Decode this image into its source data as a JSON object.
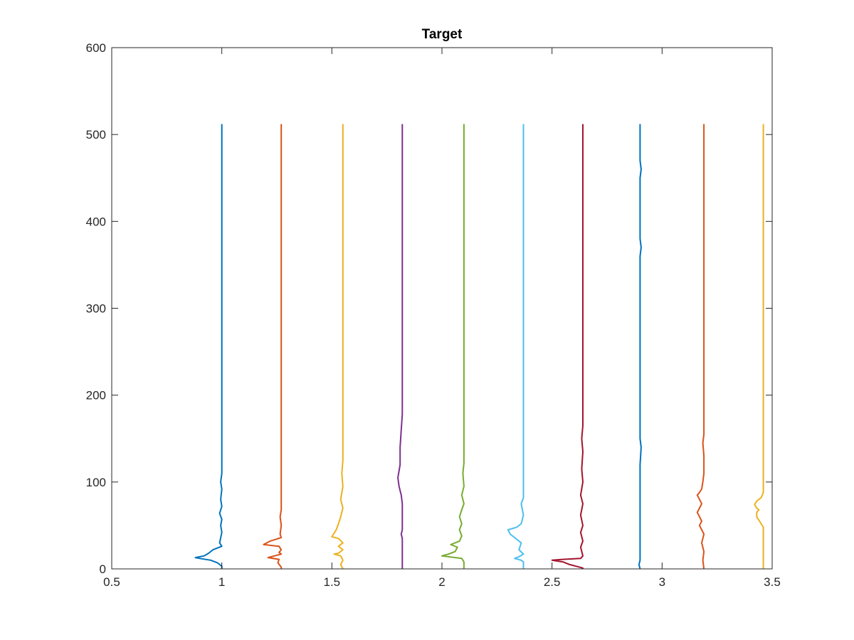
{
  "chart_data": {
    "type": "line",
    "title": "Target",
    "xlabel": "",
    "ylabel": "",
    "xlim": [
      0.5,
      3.5
    ],
    "ylim": [
      0,
      600
    ],
    "x_ticks": [
      "0.5",
      "1",
      "1.5",
      "2",
      "2.5",
      "3",
      "3.5"
    ],
    "y_ticks": [
      "0",
      "100",
      "200",
      "300",
      "400",
      "500",
      "600"
    ],
    "grid": false,
    "legend": "none",
    "series": [
      {
        "color": "#0072BD",
        "points": [
          [
            1.0,
            512
          ],
          [
            1.0,
            110
          ],
          [
            0.995,
            100
          ],
          [
            1.0,
            92
          ],
          [
            0.995,
            80
          ],
          [
            1.0,
            72
          ],
          [
            0.99,
            64
          ],
          [
            1.0,
            57
          ],
          [
            0.995,
            50
          ],
          [
            1.0,
            42
          ],
          [
            0.99,
            30
          ],
          [
            1.0,
            26
          ],
          [
            0.96,
            22
          ],
          [
            0.94,
            18
          ],
          [
            0.92,
            15
          ],
          [
            0.88,
            13
          ],
          [
            0.9,
            12
          ],
          [
            0.95,
            10
          ],
          [
            0.98,
            7
          ],
          [
            1.0,
            3
          ],
          [
            1.0,
            0
          ]
        ]
      },
      {
        "color": "#D95319",
        "points": [
          [
            1.27,
            512
          ],
          [
            1.27,
            68
          ],
          [
            1.265,
            60
          ],
          [
            1.27,
            50
          ],
          [
            1.265,
            40
          ],
          [
            1.27,
            36
          ],
          [
            1.22,
            32
          ],
          [
            1.19,
            28
          ],
          [
            1.26,
            26
          ],
          [
            1.27,
            22
          ],
          [
            1.26,
            19
          ],
          [
            1.27,
            17
          ],
          [
            1.24,
            15
          ],
          [
            1.21,
            13
          ],
          [
            1.26,
            11
          ],
          [
            1.255,
            7
          ],
          [
            1.27,
            2
          ],
          [
            1.27,
            0
          ]
        ]
      },
      {
        "color": "#EDB120",
        "points": [
          [
            1.55,
            512
          ],
          [
            1.55,
            125
          ],
          [
            1.545,
            110
          ],
          [
            1.55,
            95
          ],
          [
            1.54,
            80
          ],
          [
            1.55,
            70
          ],
          [
            1.54,
            60
          ],
          [
            1.53,
            52
          ],
          [
            1.52,
            45
          ],
          [
            1.5,
            37
          ],
          [
            1.53,
            35
          ],
          [
            1.55,
            30
          ],
          [
            1.53,
            26
          ],
          [
            1.55,
            22
          ],
          [
            1.53,
            18
          ],
          [
            1.51,
            17
          ],
          [
            1.54,
            15
          ],
          [
            1.55,
            10
          ],
          [
            1.54,
            5
          ],
          [
            1.55,
            0
          ]
        ]
      },
      {
        "color": "#7E2F8E",
        "points": [
          [
            1.82,
            512
          ],
          [
            1.82,
            178
          ],
          [
            1.815,
            160
          ],
          [
            1.81,
            140
          ],
          [
            1.81,
            120
          ],
          [
            1.8,
            105
          ],
          [
            1.805,
            95
          ],
          [
            1.815,
            85
          ],
          [
            1.82,
            75
          ],
          [
            1.82,
            45
          ],
          [
            1.815,
            40
          ],
          [
            1.82,
            35
          ],
          [
            1.82,
            0
          ]
        ]
      },
      {
        "color": "#77AC30",
        "points": [
          [
            2.1,
            512
          ],
          [
            2.1,
            122
          ],
          [
            2.095,
            110
          ],
          [
            2.1,
            95
          ],
          [
            2.09,
            85
          ],
          [
            2.1,
            75
          ],
          [
            2.09,
            68
          ],
          [
            2.08,
            60
          ],
          [
            2.09,
            52
          ],
          [
            2.08,
            45
          ],
          [
            2.09,
            38
          ],
          [
            2.08,
            32
          ],
          [
            2.04,
            28
          ],
          [
            2.07,
            25
          ],
          [
            2.06,
            20
          ],
          [
            2.03,
            17
          ],
          [
            2.0,
            15
          ],
          [
            2.09,
            12
          ],
          [
            2.1,
            8
          ],
          [
            2.1,
            0
          ]
        ]
      },
      {
        "color": "#4DBEEE",
        "points": [
          [
            2.37,
            512
          ],
          [
            2.37,
            82
          ],
          [
            2.36,
            75
          ],
          [
            2.37,
            62
          ],
          [
            2.36,
            52
          ],
          [
            2.34,
            48
          ],
          [
            2.3,
            45
          ],
          [
            2.31,
            40
          ],
          [
            2.33,
            36
          ],
          [
            2.36,
            30
          ],
          [
            2.35,
            22
          ],
          [
            2.37,
            17
          ],
          [
            2.35,
            14
          ],
          [
            2.33,
            12
          ],
          [
            2.36,
            10
          ],
          [
            2.37,
            8
          ],
          [
            2.37,
            0
          ]
        ]
      },
      {
        "color": "#A2142F",
        "points": [
          [
            2.64,
            512
          ],
          [
            2.64,
            165
          ],
          [
            2.635,
            150
          ],
          [
            2.64,
            135
          ],
          [
            2.635,
            115
          ],
          [
            2.64,
            100
          ],
          [
            2.63,
            85
          ],
          [
            2.64,
            75
          ],
          [
            2.63,
            62
          ],
          [
            2.64,
            50
          ],
          [
            2.63,
            42
          ],
          [
            2.64,
            32
          ],
          [
            2.63,
            25
          ],
          [
            2.64,
            15
          ],
          [
            2.63,
            12
          ],
          [
            2.55,
            11
          ],
          [
            2.5,
            10
          ],
          [
            2.55,
            8
          ],
          [
            2.58,
            5
          ],
          [
            2.61,
            3
          ],
          [
            2.64,
            1
          ],
          [
            2.64,
            0
          ]
        ]
      },
      {
        "color": "#0072BD",
        "points": [
          [
            2.9,
            512
          ],
          [
            2.9,
            470
          ],
          [
            2.905,
            460
          ],
          [
            2.9,
            450
          ],
          [
            2.9,
            380
          ],
          [
            2.905,
            370
          ],
          [
            2.9,
            360
          ],
          [
            2.9,
            150
          ],
          [
            2.905,
            140
          ],
          [
            2.9,
            120
          ],
          [
            2.9,
            10
          ],
          [
            2.895,
            5
          ],
          [
            2.9,
            0
          ]
        ]
      },
      {
        "color": "#D95319",
        "points": [
          [
            3.19,
            512
          ],
          [
            3.19,
            155
          ],
          [
            3.185,
            145
          ],
          [
            3.19,
            130
          ],
          [
            3.19,
            110
          ],
          [
            3.185,
            100
          ],
          [
            3.18,
            92
          ],
          [
            3.17,
            88
          ],
          [
            3.16,
            85
          ],
          [
            3.17,
            80
          ],
          [
            3.18,
            75
          ],
          [
            3.17,
            70
          ],
          [
            3.16,
            65
          ],
          [
            3.17,
            60
          ],
          [
            3.18,
            55
          ],
          [
            3.17,
            50
          ],
          [
            3.18,
            45
          ],
          [
            3.19,
            40
          ],
          [
            3.18,
            30
          ],
          [
            3.19,
            20
          ],
          [
            3.185,
            10
          ],
          [
            3.19,
            0
          ]
        ]
      },
      {
        "color": "#EDB120",
        "points": [
          [
            3.46,
            512
          ],
          [
            3.46,
            88
          ],
          [
            3.45,
            82
          ],
          [
            3.43,
            78
          ],
          [
            3.42,
            74
          ],
          [
            3.43,
            70
          ],
          [
            3.44,
            68
          ],
          [
            3.43,
            65
          ],
          [
            3.43,
            60
          ],
          [
            3.44,
            56
          ],
          [
            3.45,
            52
          ],
          [
            3.46,
            48
          ],
          [
            3.46,
            0
          ]
        ]
      }
    ]
  }
}
